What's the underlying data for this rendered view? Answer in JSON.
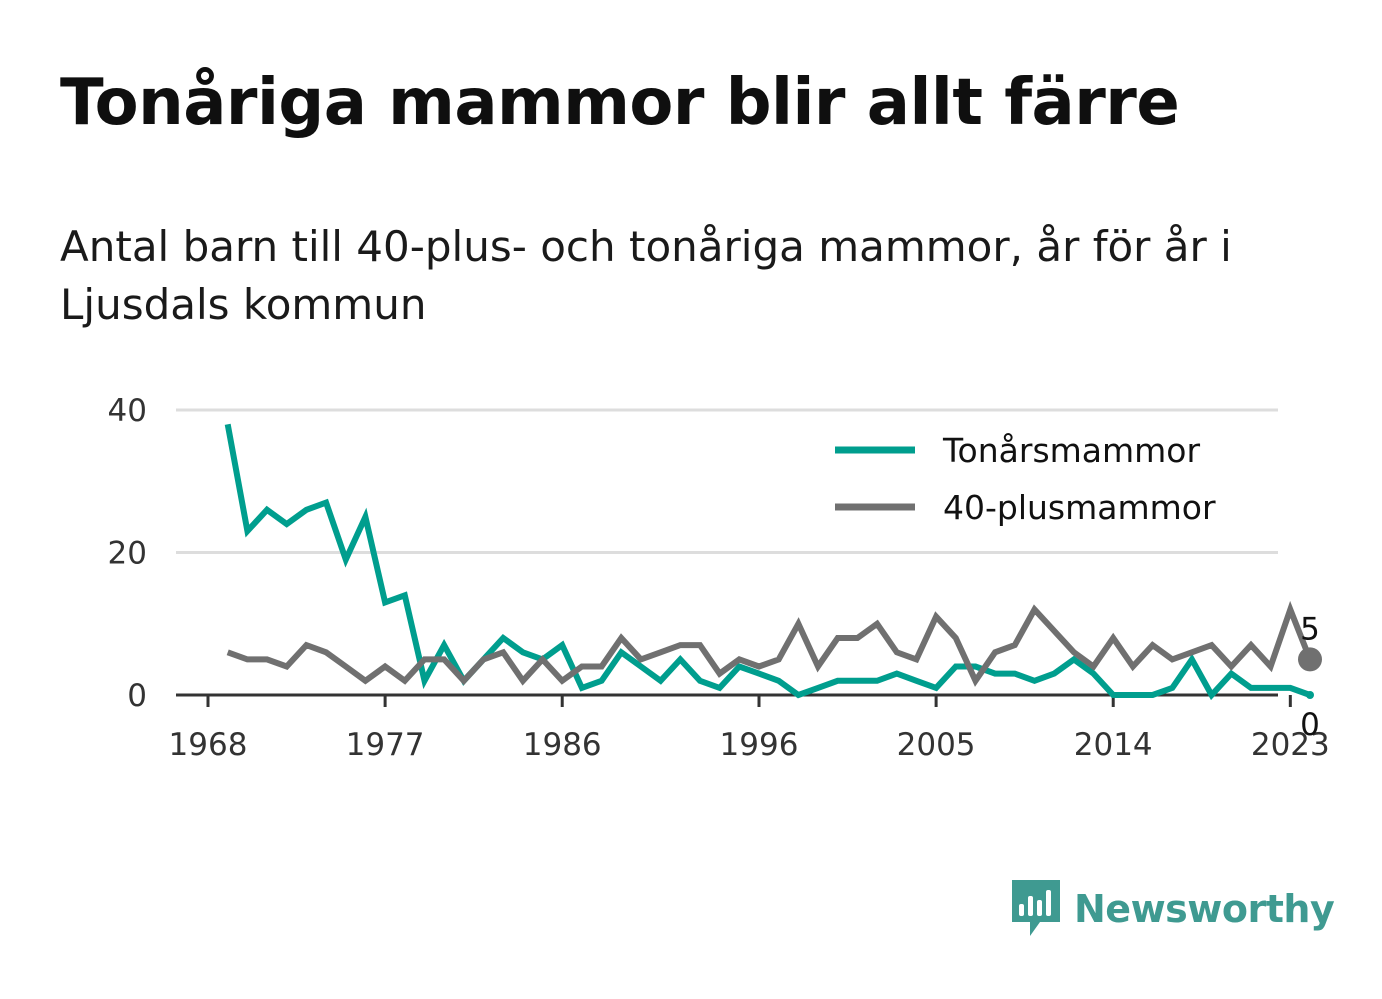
{
  "title": "Tonåriga mammor blir allt färre",
  "subtitle": "Antal barn till 40-plus- och tonåriga mammor, år för år i Ljusdals kommun",
  "brand": {
    "name": "Newsworthy",
    "icon": "newsworthy-logo-icon",
    "color": "#3f9a91"
  },
  "chart_data": {
    "type": "line",
    "xlim": [
      1968,
      2024
    ],
    "ylim": [
      0,
      40
    ],
    "y_ticks": [
      "0",
      "20",
      "40"
    ],
    "x_ticks": [
      "1968",
      "1977",
      "1986",
      "1996",
      "2005",
      "2014",
      "2023"
    ],
    "grid": true,
    "legend_position": "top-right",
    "x": [
      1969,
      1970,
      1971,
      1972,
      1973,
      1974,
      1975,
      1976,
      1977,
      1978,
      1979,
      1980,
      1981,
      1982,
      1983,
      1984,
      1985,
      1986,
      1987,
      1988,
      1989,
      1990,
      1991,
      1992,
      1993,
      1994,
      1995,
      1996,
      1997,
      1998,
      1999,
      2000,
      2001,
      2002,
      2003,
      2004,
      2005,
      2006,
      2007,
      2008,
      2009,
      2010,
      2011,
      2012,
      2013,
      2014,
      2015,
      2016,
      2017,
      2018,
      2019,
      2020,
      2021,
      2022,
      2023,
      2024
    ],
    "series": [
      {
        "name": "Tonårsmammor",
        "color": "#009e8e",
        "values": [
          38,
          23,
          26,
          24,
          26,
          27,
          19,
          25,
          13,
          14,
          2,
          7,
          2,
          5,
          8,
          6,
          5,
          7,
          1,
          2,
          6,
          4,
          2,
          5,
          2,
          1,
          4,
          3,
          2,
          0,
          1,
          2,
          2,
          2,
          3,
          2,
          1,
          4,
          4,
          3,
          3,
          2,
          3,
          5,
          3,
          0,
          0,
          0,
          1,
          5,
          0,
          3,
          1,
          1,
          1,
          0
        ],
        "end_label": "0"
      },
      {
        "name": "40-plusmammor",
        "color": "#707070",
        "values": [
          6,
          5,
          5,
          4,
          7,
          6,
          4,
          2,
          4,
          2,
          5,
          5,
          2,
          5,
          6,
          2,
          5,
          2,
          4,
          4,
          8,
          5,
          6,
          7,
          7,
          3,
          5,
          4,
          5,
          10,
          4,
          8,
          8,
          10,
          6,
          5,
          11,
          8,
          2,
          6,
          7,
          12,
          9,
          6,
          4,
          8,
          4,
          7,
          5,
          6,
          7,
          4,
          7,
          4,
          12,
          5
        ],
        "end_label": "5"
      }
    ]
  }
}
